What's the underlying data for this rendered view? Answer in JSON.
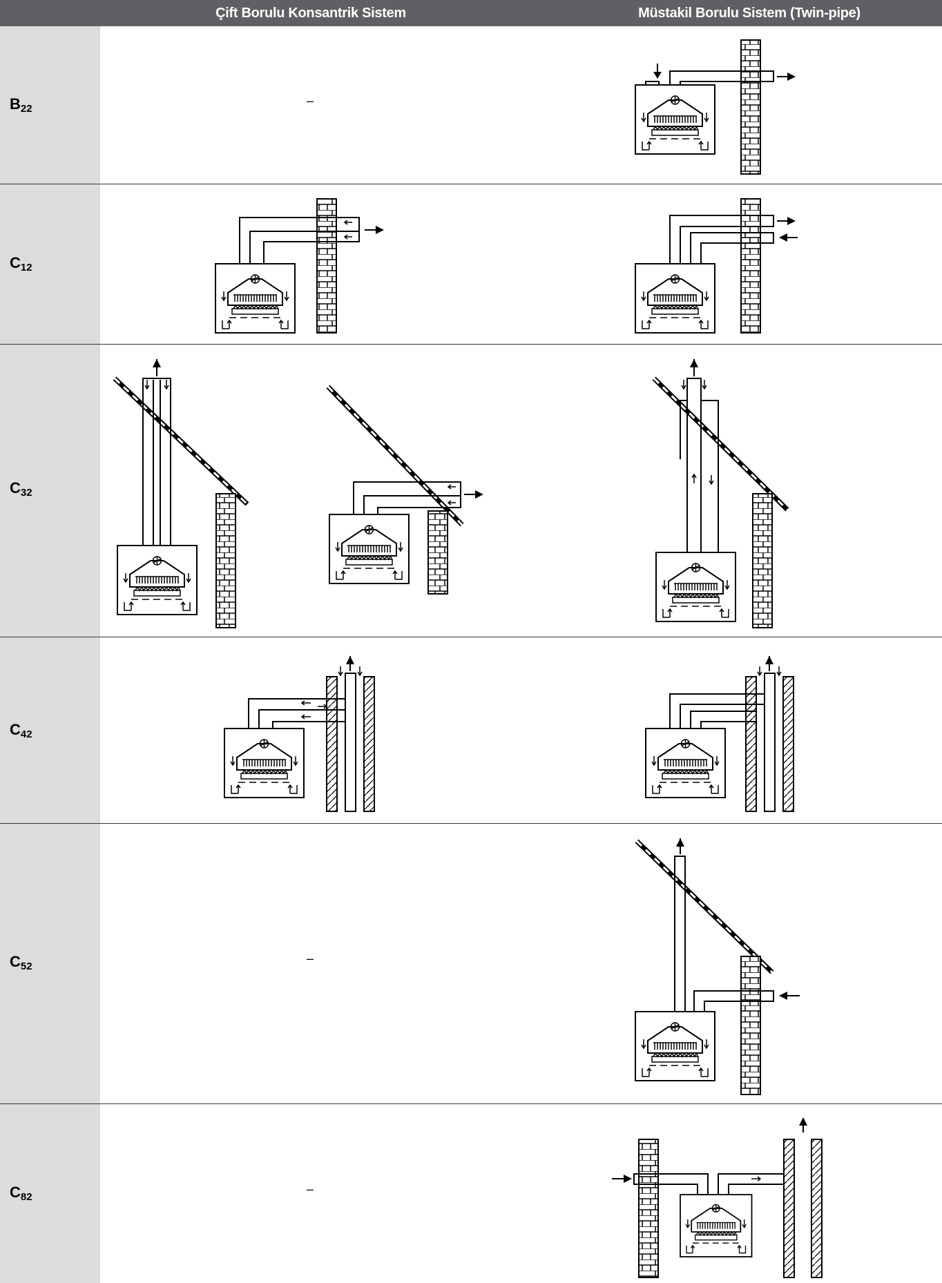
{
  "header": {
    "col1": "Çift Borulu Konsantrik Sistem",
    "col2": "Müstakil Borulu Sistem (Twin-pipe)"
  },
  "rows": [
    {
      "code": "B",
      "sub": "22",
      "col1": "–"
    },
    {
      "code": "C",
      "sub": "12",
      "col1": ""
    },
    {
      "code": "C",
      "sub": "32",
      "col1": ""
    },
    {
      "code": "C",
      "sub": "42",
      "col1": ""
    },
    {
      "code": "C",
      "sub": "52",
      "col1": "–"
    },
    {
      "code": "C",
      "sub": "82",
      "col1": "–"
    }
  ]
}
